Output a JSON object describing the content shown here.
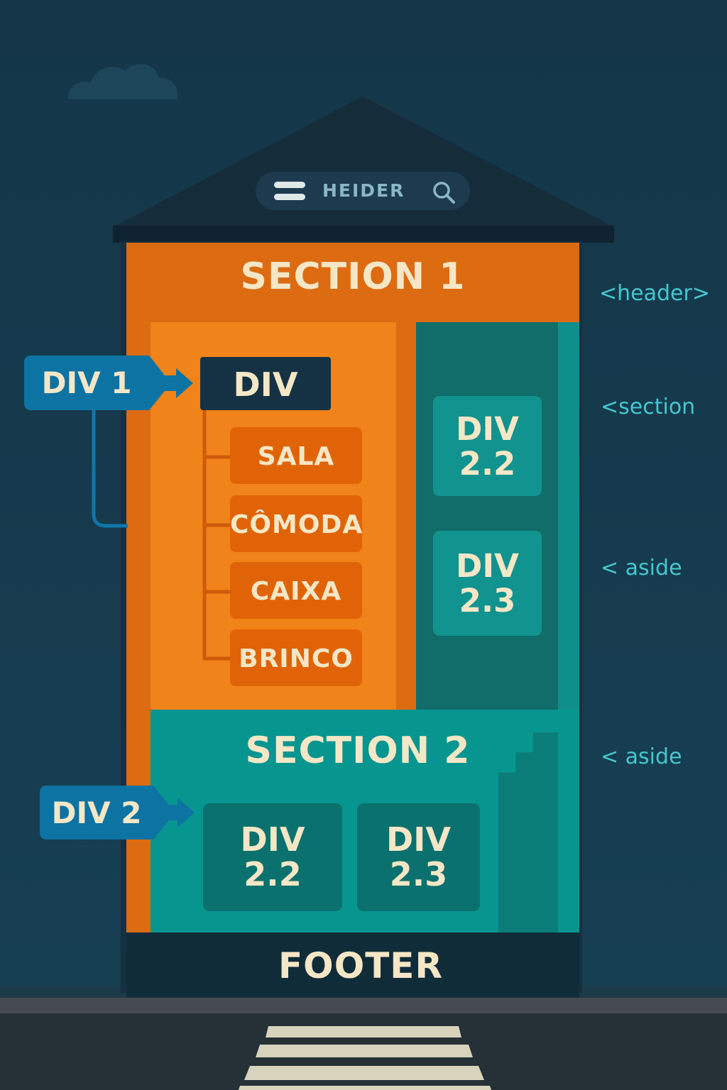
{
  "header_bar": {
    "label": "HEIDER"
  },
  "section1": {
    "title": "SECTION 1"
  },
  "div1": {
    "callout": "DIV 1",
    "heading": "DIV",
    "items": [
      "SALA",
      "CÔMODA",
      "CAIXA",
      "BRINCO"
    ]
  },
  "aside_column": {
    "cards": [
      {
        "line1": "DIV",
        "line2": "2.2"
      },
      {
        "line1": "DIV",
        "line2": "2.3"
      }
    ]
  },
  "section2": {
    "title": "SECTION 2",
    "callout": "DIV 2",
    "cards": [
      {
        "line1": "DIV",
        "line2": "2.2"
      },
      {
        "line1": "DIV",
        "line2": "2.3"
      }
    ]
  },
  "footer": {
    "label": "FOOTER"
  },
  "side_tags": [
    "<header>",
    "<section",
    "< aside",
    "< aside"
  ]
}
